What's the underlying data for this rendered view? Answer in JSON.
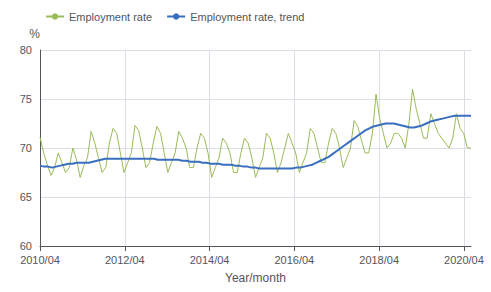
{
  "chart_data": {
    "type": "line",
    "xlabel": "Year/month",
    "ylabel": "%",
    "xlim": [
      2010.25,
      2020.417
    ],
    "xticks": [
      {
        "value": 2010.25,
        "label": "2010/04"
      },
      {
        "value": 2012.25,
        "label": "2012/04"
      },
      {
        "value": 2014.25,
        "label": "2014/04"
      },
      {
        "value": 2016.25,
        "label": "2016/04"
      },
      {
        "value": 2018.25,
        "label": "2018/04"
      },
      {
        "value": 2020.25,
        "label": "2020/04"
      }
    ],
    "ylim": [
      60,
      80
    ],
    "yticks": [
      60,
      65,
      70,
      75,
      80
    ],
    "grid": true,
    "legend": "top",
    "series": [
      {
        "name": "Employment rate",
        "color": "#9BBB59",
        "x": [
          2010.25,
          2010.3362,
          2010.4223,
          2010.5085,
          2010.5946,
          2010.6808,
          2010.767,
          2010.8531,
          2010.9393,
          2011.0254,
          2011.1116,
          2011.1978,
          2011.2839,
          2011.3701,
          2011.4563,
          2011.5424,
          2011.6286,
          2011.7147,
          2011.8009,
          2011.8871,
          2011.9732,
          2012.0594,
          2012.1455,
          2012.2317,
          2012.3179,
          2012.404,
          2012.4902,
          2012.5763,
          2012.6625,
          2012.7487,
          2012.8348,
          2012.921,
          2013.0072,
          2013.0933,
          2013.1795,
          2013.2656,
          2013.3518,
          2013.438,
          2013.5241,
          2013.6103,
          2013.6964,
          2013.7826,
          2013.8688,
          2013.9549,
          2014.0411,
          2014.1272,
          2014.2134,
          2014.2996,
          2014.3857,
          2014.4719,
          2014.5581,
          2014.6442,
          2014.7304,
          2014.8165,
          2014.9027,
          2014.9889,
          2015.075,
          2015.1612,
          2015.2473,
          2015.3335,
          2015.4197,
          2015.5058,
          2015.592,
          2015.6781,
          2015.7643,
          2015.8505,
          2015.9366,
          2016.0228,
          2016.1089,
          2016.1951,
          2016.2813,
          2016.3674,
          2016.4536,
          2016.5398,
          2016.6259,
          2016.7121,
          2016.7982,
          2016.8844,
          2016.9706,
          2017.0567,
          2017.1429,
          2017.229,
          2017.3152,
          2017.4014,
          2017.4875,
          2017.5737,
          2017.6598,
          2017.746,
          2017.8322,
          2017.9183,
          2018.0045,
          2018.0907,
          2018.1768,
          2018.263,
          2018.3491,
          2018.4353,
          2018.5215,
          2018.6076,
          2018.6938,
          2018.7799,
          2018.8661,
          2018.9523,
          2019.0384,
          2019.1246,
          2019.2107,
          2019.2969,
          2019.3831,
          2019.4692,
          2019.5554,
          2019.6416,
          2019.7277,
          2019.8139,
          2019.9,
          2019.9862,
          2020.0724,
          2020.1585,
          2020.2447,
          2020.3308,
          2020.417
        ],
        "values": [
          71.1,
          69.5,
          68.3,
          67.2,
          68.0,
          69.5,
          68.5,
          67.5,
          68.0,
          70.0,
          68.8,
          67.0,
          68.2,
          69.0,
          71.7,
          70.5,
          69.0,
          67.5,
          68.0,
          70.5,
          72.0,
          71.5,
          69.5,
          67.5,
          68.5,
          69.5,
          72.3,
          71.8,
          70.0,
          68.0,
          68.5,
          70.5,
          72.2,
          71.5,
          69.5,
          67.5,
          68.5,
          69.5,
          71.7,
          71.0,
          70.0,
          68.0,
          68.0,
          70.0,
          71.5,
          71.0,
          69.5,
          67.0,
          68.0,
          69.0,
          71.0,
          70.5,
          69.5,
          67.5,
          67.5,
          69.5,
          71.0,
          70.5,
          69.0,
          67.0,
          68.0,
          69.0,
          71.5,
          71.0,
          69.5,
          67.5,
          68.5,
          70.0,
          71.5,
          70.5,
          69.5,
          67.5,
          68.5,
          69.5,
          72.0,
          71.5,
          70.0,
          68.5,
          68.5,
          70.5,
          72.0,
          71.5,
          70.0,
          68.0,
          69.0,
          70.0,
          72.8,
          72.2,
          70.8,
          69.5,
          69.5,
          71.5,
          75.5,
          73.0,
          71.5,
          70.0,
          70.5,
          71.5,
          71.5,
          71.0,
          70.0,
          72.5,
          76.0,
          74.0,
          72.5,
          71.0,
          71.0,
          73.5,
          72.5,
          71.5,
          71.0,
          70.5,
          70.0,
          71.0,
          73.5,
          72.0,
          71.5,
          70.0,
          70.0
        ]
      },
      {
        "name": "Employment rate, trend",
        "color": "#3A6EC0",
        "x": [
          2010.25,
          2010.3459,
          2010.4418,
          2010.5377,
          2010.6337,
          2010.7296,
          2010.8255,
          2010.9214,
          2011.0173,
          2011.1132,
          2011.2092,
          2011.3051,
          2011.401,
          2011.4969,
          2011.5928,
          2011.6887,
          2011.7846,
          2011.8806,
          2011.9765,
          2012.0724,
          2012.1683,
          2012.2642,
          2012.3601,
          2012.456,
          2012.552,
          2012.6479,
          2012.7438,
          2012.8397,
          2012.9356,
          2013.0315,
          2013.1275,
          2013.2234,
          2013.3193,
          2013.4152,
          2013.5111,
          2013.607,
          2013.7029,
          2013.7989,
          2013.8948,
          2013.9907,
          2014.0866,
          2014.1825,
          2014.2784,
          2014.3743,
          2014.4703,
          2014.5662,
          2014.6621,
          2014.758,
          2014.8539,
          2014.9498,
          2015.0458,
          2015.1417,
          2015.2376,
          2015.3335,
          2015.4294,
          2015.5253,
          2015.6212,
          2015.7172,
          2015.8131,
          2015.909,
          2016.0049,
          2016.1008,
          2016.1967,
          2016.2927,
          2016.3886,
          2016.4845,
          2016.5804,
          2016.6763,
          2016.7722,
          2016.8681,
          2016.9641,
          2017.06,
          2017.1559,
          2017.2518,
          2017.3477,
          2017.4436,
          2017.5395,
          2017.6355,
          2017.7314,
          2017.8273,
          2017.9232,
          2018.0191,
          2018.115,
          2018.211,
          2018.3069,
          2018.4028,
          2018.4987,
          2018.5946,
          2018.6905,
          2018.7864,
          2018.8824,
          2018.9783,
          2019.0742,
          2019.1701,
          2019.266,
          2019.3619,
          2019.4578,
          2019.5538,
          2019.6497,
          2019.7456,
          2019.8415,
          2019.9374,
          2020.0333,
          2020.1293,
          2020.2252,
          2020.3211,
          2020.417
        ],
        "values": [
          68.2,
          68.1,
          68.1,
          68.0,
          68.1,
          68.2,
          68.3,
          68.4,
          68.4,
          68.5,
          68.5,
          68.5,
          68.5,
          68.6,
          68.7,
          68.8,
          68.9,
          68.9,
          68.9,
          68.9,
          68.9,
          68.9,
          68.9,
          68.9,
          68.9,
          68.9,
          68.9,
          68.9,
          68.9,
          68.8,
          68.8,
          68.8,
          68.8,
          68.8,
          68.8,
          68.7,
          68.7,
          68.6,
          68.6,
          68.6,
          68.5,
          68.5,
          68.4,
          68.4,
          68.4,
          68.3,
          68.3,
          68.3,
          68.2,
          68.2,
          68.1,
          68.1,
          68.0,
          68.0,
          67.9,
          67.9,
          67.9,
          67.9,
          67.9,
          67.9,
          67.9,
          67.9,
          67.9,
          68.0,
          68.0,
          68.1,
          68.2,
          68.3,
          68.5,
          68.7,
          68.9,
          69.1,
          69.4,
          69.7,
          70.0,
          70.3,
          70.6,
          70.9,
          71.2,
          71.5,
          71.8,
          72.0,
          72.2,
          72.3,
          72.4,
          72.5,
          72.5,
          72.5,
          72.4,
          72.3,
          72.2,
          72.1,
          72.1,
          72.2,
          72.3,
          72.5,
          72.7,
          72.8,
          72.9,
          73.0,
          73.1,
          73.2,
          73.3,
          73.3,
          73.3,
          73.3,
          73.3
        ]
      }
    ]
  }
}
